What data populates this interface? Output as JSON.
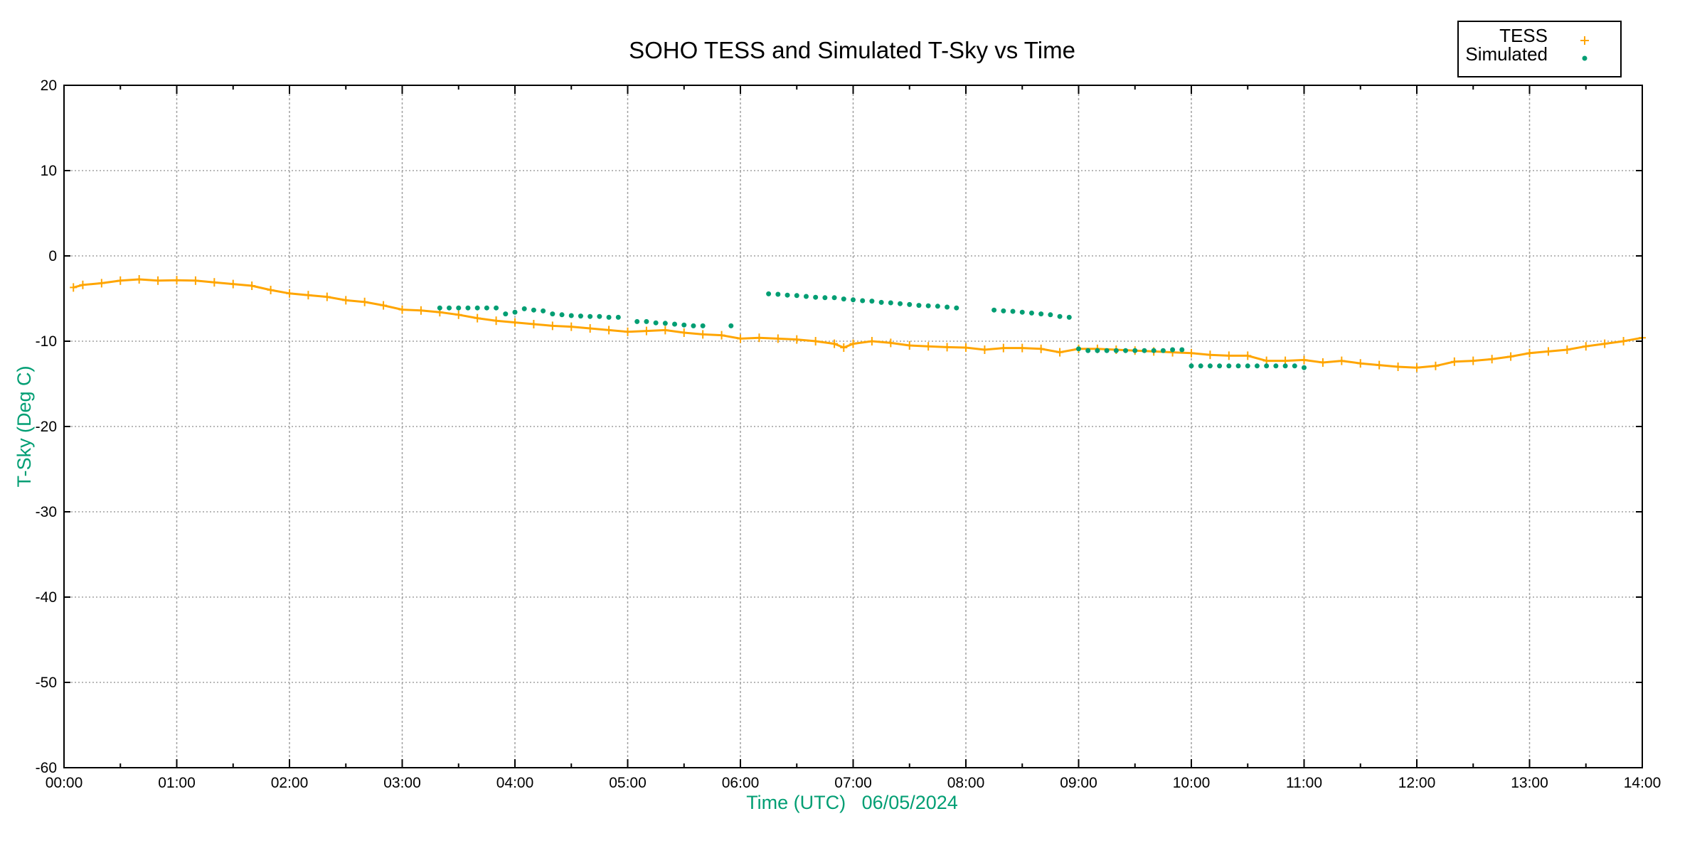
{
  "chart_data": {
    "type": "scatter",
    "title": "SOHO TESS and Simulated T-Sky vs Time",
    "xlabel": "Time (UTC)   06/05/2024",
    "ylabel": "T-Sky (Deg C)",
    "xlim": [
      "00:00",
      "14:00"
    ],
    "ylim": [
      -60,
      20
    ],
    "x_ticks": [
      "00:00",
      "01:00",
      "02:00",
      "03:00",
      "04:00",
      "05:00",
      "06:00",
      "07:00",
      "08:00",
      "09:00",
      "10:00",
      "11:00",
      "12:00",
      "13:00",
      "14:00"
    ],
    "y_ticks": [
      20,
      10,
      0,
      -10,
      -20,
      -30,
      -40,
      -50,
      -60
    ],
    "grid": true,
    "legend_position": "top-right",
    "axis_label_color": "#009E73",
    "series": [
      {
        "name": "TESS",
        "color": "#FFA500",
        "marker": "plus",
        "x": [
          "00:05",
          "00:10",
          "00:20",
          "00:30",
          "00:40",
          "00:50",
          "01:00",
          "01:10",
          "01:20",
          "01:30",
          "01:40",
          "01:50",
          "02:00",
          "02:10",
          "02:20",
          "02:30",
          "02:40",
          "02:50",
          "03:00",
          "03:10",
          "03:20",
          "03:30",
          "03:40",
          "03:50",
          "04:00",
          "04:10",
          "04:20",
          "04:30",
          "04:40",
          "04:50",
          "05:00",
          "05:10",
          "05:20",
          "05:30",
          "05:40",
          "05:50",
          "06:00",
          "06:10",
          "06:20",
          "06:30",
          "06:40",
          "06:50",
          "06:55",
          "07:00",
          "07:10",
          "07:20",
          "07:30",
          "07:40",
          "07:50",
          "08:00",
          "08:10",
          "08:20",
          "08:30",
          "08:40",
          "08:50",
          "09:00",
          "09:10",
          "09:20",
          "09:30",
          "09:40",
          "09:50",
          "10:00",
          "10:10",
          "10:20",
          "10:30",
          "10:40",
          "10:50",
          "11:00",
          "11:10",
          "11:20",
          "11:30",
          "11:40",
          "11:50",
          "12:00",
          "12:10",
          "12:20",
          "12:30",
          "12:40",
          "12:50",
          "13:00",
          "13:10",
          "13:20",
          "13:30",
          "13:40",
          "13:50",
          "14:00"
        ],
        "y": [
          -3.7,
          -3.4,
          -3.2,
          -2.9,
          -2.75,
          -2.9,
          -2.85,
          -2.9,
          -3.1,
          -3.3,
          -3.5,
          -4.0,
          -4.4,
          -4.6,
          -4.8,
          -5.2,
          -5.4,
          -5.8,
          -6.3,
          -6.4,
          -6.6,
          -6.9,
          -7.3,
          -7.6,
          -7.8,
          -8.0,
          -8.2,
          -8.3,
          -8.5,
          -8.7,
          -8.9,
          -8.8,
          -8.7,
          -9.0,
          -9.2,
          -9.3,
          -9.7,
          -9.6,
          -9.7,
          -9.8,
          -10.0,
          -10.3,
          -10.75,
          -10.3,
          -10.0,
          -10.2,
          -10.5,
          -10.6,
          -10.7,
          -10.75,
          -11.0,
          -10.8,
          -10.8,
          -10.9,
          -11.3,
          -10.9,
          -10.9,
          -11.0,
          -11.1,
          -11.2,
          -11.3,
          -11.4,
          -11.6,
          -11.7,
          -11.7,
          -12.3,
          -12.3,
          -12.2,
          -12.5,
          -12.3,
          -12.6,
          -12.8,
          -13.0,
          -13.1,
          -12.9,
          -12.4,
          -12.3,
          -12.1,
          -11.8,
          -11.4,
          -11.2,
          -11.0,
          -10.6,
          -10.3,
          -10.0,
          -9.6
        ]
      },
      {
        "name": "Simulated",
        "color": "#009E73",
        "marker": "dot",
        "x": [
          "03:20",
          "03:25",
          "03:30",
          "03:35",
          "03:40",
          "03:45",
          "03:50",
          "03:55",
          "04:00",
          "04:05",
          "04:10",
          "04:15",
          "04:20",
          "04:25",
          "04:30",
          "04:35",
          "04:40",
          "04:45",
          "04:50",
          "04:55",
          "05:05",
          "05:10",
          "05:15",
          "05:20",
          "05:25",
          "05:30",
          "05:35",
          "05:40",
          "05:55",
          "06:15",
          "06:20",
          "06:25",
          "06:30",
          "06:35",
          "06:40",
          "06:45",
          "06:50",
          "06:55",
          "07:00",
          "07:05",
          "07:10",
          "07:15",
          "07:20",
          "07:25",
          "07:30",
          "07:35",
          "07:40",
          "07:45",
          "07:50",
          "07:55",
          "08:15",
          "08:20",
          "08:25",
          "08:30",
          "08:35",
          "08:40",
          "08:45",
          "08:50",
          "08:55",
          "09:00",
          "09:05",
          "09:10",
          "09:15",
          "09:20",
          "09:25",
          "09:30",
          "09:35",
          "09:40",
          "09:45",
          "09:50",
          "09:55",
          "10:00",
          "10:05",
          "10:10",
          "10:15",
          "10:20",
          "10:25",
          "10:30",
          "10:35",
          "10:40",
          "10:45",
          "10:50",
          "10:55",
          "11:00"
        ],
        "y": [
          -6.1,
          -6.1,
          -6.1,
          -6.1,
          -6.1,
          -6.1,
          -6.1,
          -6.8,
          -6.6,
          -6.2,
          -6.35,
          -6.45,
          -6.8,
          -6.9,
          -7.0,
          -7.05,
          -7.1,
          -7.1,
          -7.2,
          -7.2,
          -7.7,
          -7.7,
          -7.85,
          -7.9,
          -8.0,
          -8.1,
          -8.2,
          -8.2,
          -8.2,
          -4.45,
          -4.5,
          -4.6,
          -4.65,
          -4.75,
          -4.85,
          -4.9,
          -4.9,
          -5.05,
          -5.15,
          -5.25,
          -5.3,
          -5.45,
          -5.5,
          -5.6,
          -5.7,
          -5.8,
          -5.85,
          -5.9,
          -6.0,
          -6.1,
          -6.35,
          -6.45,
          -6.5,
          -6.6,
          -6.7,
          -6.8,
          -6.9,
          -7.1,
          -7.2,
          -10.9,
          -11.1,
          -11.1,
          -11.1,
          -11.1,
          -11.1,
          -11.1,
          -11.1,
          -11.1,
          -11.1,
          -11.0,
          -11.0,
          -12.9,
          -12.9,
          -12.9,
          -12.9,
          -12.9,
          -12.9,
          -12.9,
          -12.9,
          -12.9,
          -12.9,
          -12.9,
          -12.9,
          -13.1
        ]
      }
    ]
  }
}
